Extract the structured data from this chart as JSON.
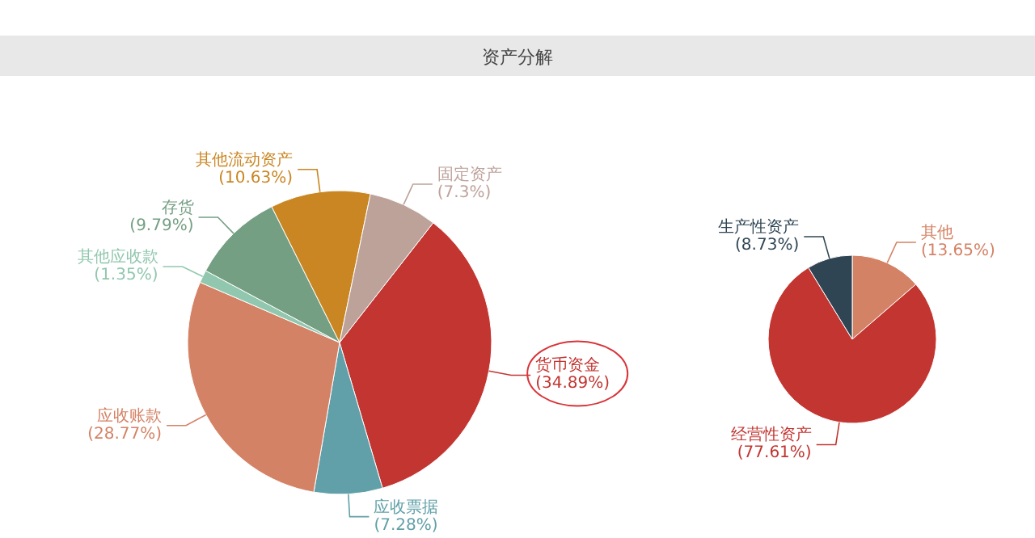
{
  "chart_data": [
    {
      "type": "pie",
      "title": "资产分解",
      "categories": [
        "货币资金",
        "应收票据",
        "应收账款",
        "其他应收款",
        "存货",
        "其他流动资产",
        "固定资产"
      ],
      "values": [
        34.89,
        7.28,
        28.77,
        1.35,
        9.79,
        10.63,
        7.3
      ],
      "value_labels": [
        "(34.89%)",
        "(7.28%)",
        "(28.77%)",
        "(1.35%)",
        "(9.79%)",
        "(10.63%)",
        "(7.3%)"
      ],
      "colors": [
        "#c23531",
        "#61a0a8",
        "#d48265",
        "#91c7ae",
        "#749f83",
        "#ca8622",
        "#bda29a"
      ]
    },
    {
      "type": "pie",
      "categories": [
        "其他",
        "经营性资产",
        "生产性资产"
      ],
      "values": [
        13.65,
        77.61,
        8.73
      ],
      "value_labels": [
        "(13.65%)",
        "(77.61%)",
        "(8.73%)"
      ],
      "colors": [
        "#d48265",
        "#c23531",
        "#2f4554"
      ]
    }
  ]
}
